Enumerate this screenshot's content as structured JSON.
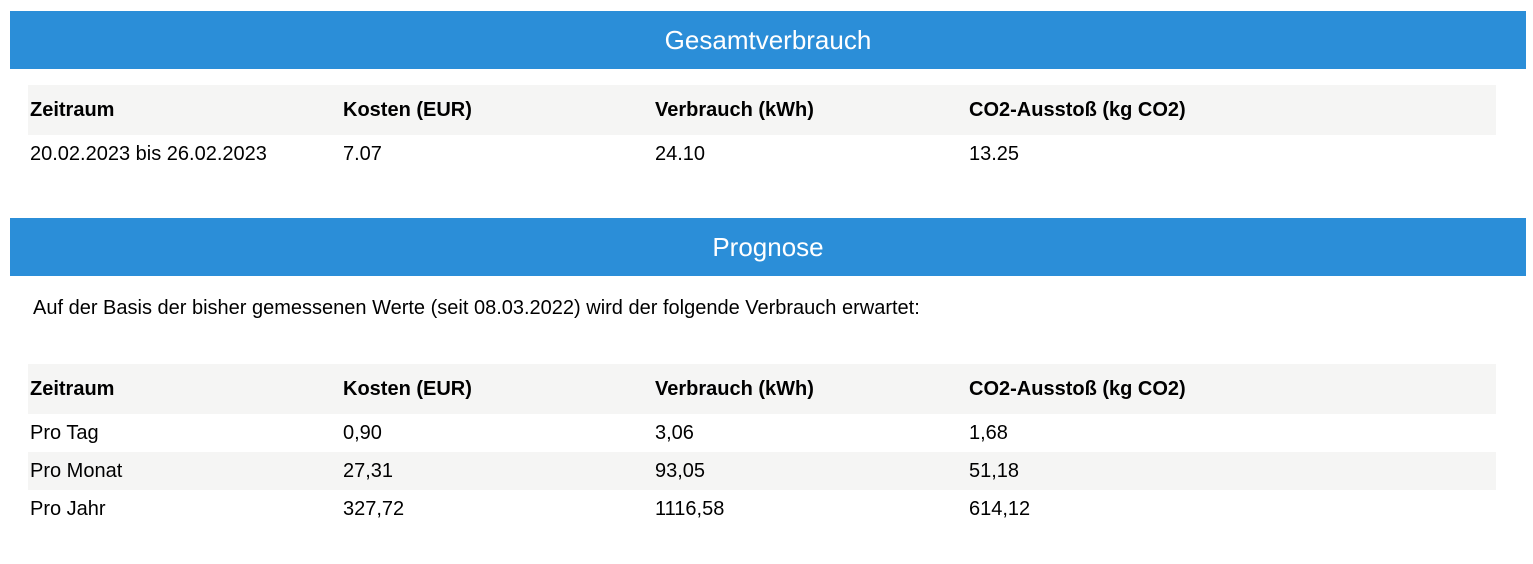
{
  "theme": {
    "accent_color": "#2b8ed8",
    "stripe_color": "#f5f5f4",
    "text_color": "#000000",
    "title_text_color": "#ffffff"
  },
  "sections": {
    "gesamtverbrauch": {
      "title": "Gesamtverbrauch",
      "table": {
        "headers": [
          "Zeitraum",
          "Kosten (EUR)",
          "Verbrauch (kWh)",
          "CO2-Ausstoß (kg CO2)"
        ],
        "rows": [
          [
            "20.02.2023 bis 26.02.2023",
            "7.07",
            "24.10",
            "13.25"
          ]
        ]
      }
    },
    "prognose": {
      "title": "Prognose",
      "intro": "Auf der Basis der bisher gemessenen Werte (seit 08.03.2022) wird der folgende Verbrauch erwartet:",
      "table": {
        "headers": [
          "Zeitraum",
          "Kosten (EUR)",
          "Verbrauch (kWh)",
          "CO2-Ausstoß (kg CO2)"
        ],
        "rows": [
          [
            "Pro Tag",
            "0,90",
            "3,06",
            "1,68"
          ],
          [
            "Pro Monat",
            "27,31",
            "93,05",
            "51,18"
          ],
          [
            "Pro Jahr",
            "327,72",
            "1116,58",
            "614,12"
          ]
        ]
      }
    }
  }
}
